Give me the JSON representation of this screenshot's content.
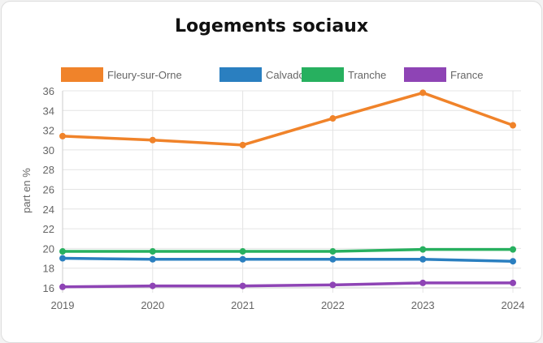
{
  "chart_data": {
    "type": "line",
    "title": "Logements sociaux",
    "xlabel": "",
    "ylabel": "part en %",
    "x": [
      "2019",
      "2020",
      "2021",
      "2022",
      "2023",
      "2024"
    ],
    "ylim": [
      16,
      36
    ],
    "yticks": [
      16,
      18,
      20,
      22,
      24,
      26,
      28,
      30,
      32,
      34,
      36
    ],
    "grid": true,
    "legend_position": "top",
    "series": [
      {
        "name": "Fleury-sur-Orne",
        "color": "#f0832a",
        "values": [
          31.4,
          31.0,
          30.5,
          33.2,
          35.8,
          32.5
        ]
      },
      {
        "name": "Calvados",
        "color": "#2a7fc0",
        "values": [
          19.0,
          18.9,
          18.9,
          18.9,
          18.9,
          18.7
        ]
      },
      {
        "name": "Tranche",
        "color": "#27b05f",
        "values": [
          19.7,
          19.7,
          19.7,
          19.7,
          19.9,
          19.9
        ]
      },
      {
        "name": "France",
        "color": "#8e44b5",
        "values": [
          16.1,
          16.2,
          16.2,
          16.3,
          16.5,
          16.5
        ]
      }
    ]
  }
}
